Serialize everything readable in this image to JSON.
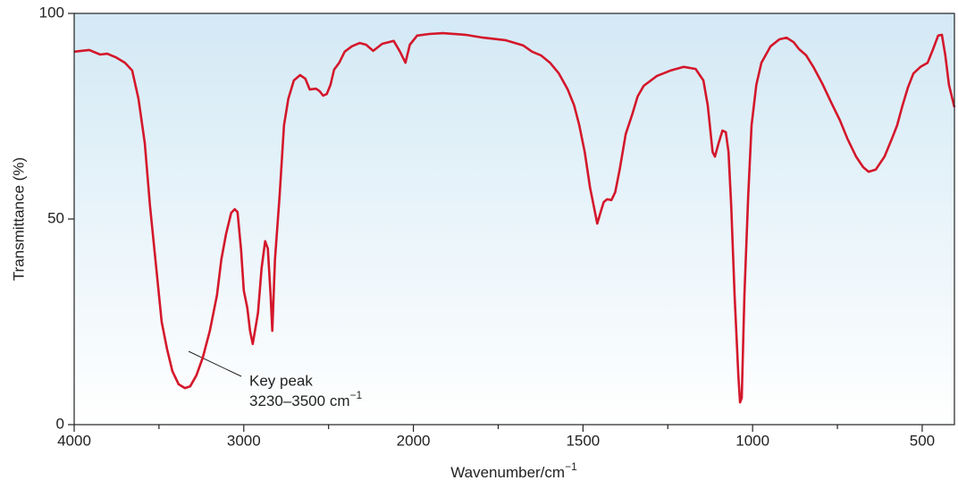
{
  "chart_data": {
    "type": "line",
    "x_label": {
      "text": "Wavenumber/cm",
      "sup": "−1"
    },
    "y_label": "Transmittance (%)",
    "annotation": {
      "lines": [
        "Key peak"
      ],
      "text": "3230–3500 cm",
      "sup": "−1"
    },
    "color": "#d4172b",
    "background": [
      "#d3e9f5",
      "#ffffff"
    ],
    "xlim": [
      4000,
      405
    ],
    "x_scale_break": 2000,
    "xticks": [
      4000,
      3000,
      2000,
      1500,
      1000,
      500
    ],
    "x_minor_ticks": [
      3500,
      2500,
      1750,
      1250,
      750
    ],
    "ylim": [
      0,
      100
    ],
    "yticks": [
      0,
      50,
      100
    ],
    "x": [
      4000,
      3911,
      3847,
      3805,
      3753,
      3700,
      3658,
      3621,
      3584,
      3553,
      3516,
      3484,
      3453,
      3421,
      3384,
      3347,
      3316,
      3279,
      3242,
      3200,
      3158,
      3132,
      3105,
      3074,
      3053,
      3037,
      3016,
      3000,
      2979,
      2963,
      2947,
      2932,
      2916,
      2895,
      2874,
      2858,
      2842,
      2832,
      2816,
      2789,
      2763,
      2737,
      2705,
      2668,
      2637,
      2611,
      2574,
      2553,
      2532,
      2511,
      2489,
      2468,
      2437,
      2405,
      2363,
      2316,
      2279,
      2237,
      2184,
      2116,
      2079,
      2047,
      2021,
      1989,
      1953,
      1913,
      1847,
      1795,
      1729,
      1676,
      1650,
      1624,
      1597,
      1571,
      1545,
      1526,
      1511,
      1495,
      1479,
      1466,
      1458,
      1450,
      1439,
      1429,
      1416,
      1405,
      1392,
      1374,
      1355,
      1339,
      1321,
      1282,
      1242,
      1203,
      1168,
      1145,
      1132,
      1118,
      1111,
      1100,
      1089,
      1079,
      1071,
      1063,
      1053,
      1042,
      1037,
      1032,
      1024,
      1013,
      1003,
      989,
      974,
      947,
      921,
      900,
      879,
      863,
      842,
      821,
      795,
      768,
      742,
      721,
      695,
      674,
      658,
      637,
      611,
      589,
      574,
      558,
      542,
      526,
      505,
      484,
      468,
      453,
      442,
      432,
      421,
      405
    ],
    "values": [
      90.7,
      91.1,
      90,
      90.2,
      89.3,
      88,
      86.1,
      79.3,
      68.5,
      53.3,
      38,
      25,
      18.5,
      13,
      9.8,
      8.9,
      9.3,
      12,
      16.3,
      22.8,
      31.5,
      40.2,
      46.3,
      51.5,
      52.4,
      51.7,
      42.4,
      32.6,
      28.3,
      22.8,
      19.6,
      23.3,
      27.2,
      38,
      44.6,
      42.8,
      31.5,
      22.8,
      40.2,
      55.4,
      72.8,
      79.3,
      83.7,
      85,
      84.1,
      81.5,
      81.7,
      81.1,
      80,
      80.4,
      82.6,
      86.3,
      88,
      90.7,
      92,
      92.8,
      92.4,
      90.9,
      92.6,
      93.3,
      90.7,
      88,
      92.4,
      94.6,
      95,
      95.2,
      94.8,
      94.1,
      93.5,
      92.2,
      90.7,
      89.8,
      88,
      85.4,
      81.5,
      77.6,
      72.8,
      66.3,
      57.6,
      52.2,
      48.9,
      51.1,
      54.1,
      54.8,
      54.6,
      56.5,
      62,
      70.7,
      75.4,
      79.8,
      82.4,
      84.8,
      86.1,
      87,
      86.5,
      83.7,
      77.6,
      66.3,
      65.2,
      68.5,
      71.5,
      71.1,
      66.3,
      53.3,
      31.5,
      12,
      5.4,
      6.5,
      31.5,
      55.4,
      72.8,
      82.6,
      88,
      92,
      93.7,
      94.1,
      93,
      91.3,
      89.8,
      87,
      83,
      78.3,
      73.9,
      69.6,
      65.2,
      62.6,
      61.5,
      62,
      65.2,
      69.6,
      72.8,
      77.6,
      82,
      85.4,
      87,
      88,
      91.3,
      94.6,
      94.8,
      89.8,
      82.6,
      77.2
    ]
  }
}
